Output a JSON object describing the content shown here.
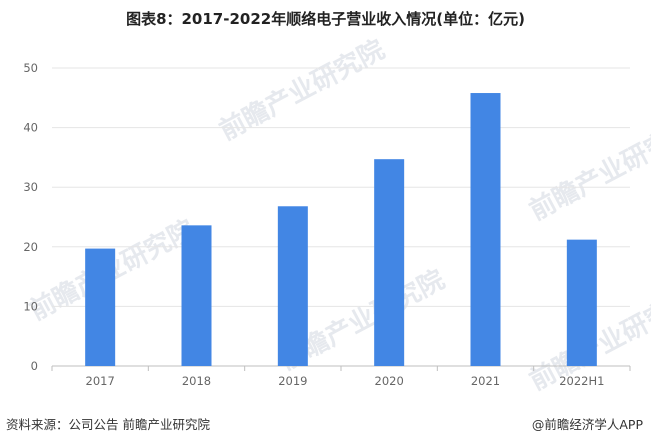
{
  "title": "图表8：2017-2022年顺络电子营业收入情况(单位：亿元)",
  "source": "资料来源：公司公告 前瞻产业研究院",
  "brand": "@前瞻经济学人APP",
  "watermark": "前瞻产业研究院",
  "colors": {
    "bar": "#4286E4",
    "grid": "#E5E5E5",
    "axis": "#BFBFBF"
  },
  "chart_data": {
    "type": "bar",
    "title": "图表8：2017-2022年顺络电子营业收入情况(单位：亿元)",
    "xlabel": "",
    "ylabel": "",
    "categories": [
      "2017",
      "2018",
      "2019",
      "2020",
      "2021",
      "2022H1"
    ],
    "values": [
      19.7,
      23.6,
      26.8,
      34.7,
      45.8,
      21.2
    ],
    "ylim": [
      0,
      50
    ],
    "yticks": [
      0,
      10,
      20,
      30,
      40,
      50
    ],
    "grid": true,
    "legend": "none"
  }
}
